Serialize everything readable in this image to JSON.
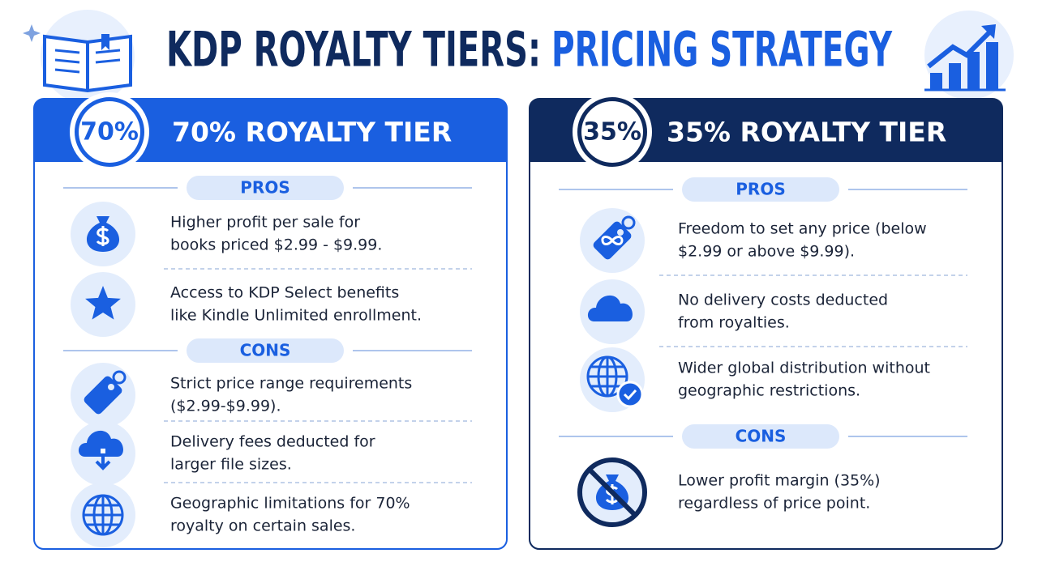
{
  "header": {
    "title_part1": "KDP ROYALTY TIERS:",
    "title_part2": "PRICING STRATEGY"
  },
  "panels": [
    {
      "badge": "70%",
      "title": "70% ROYALTY TIER",
      "pros_label": "PROS",
      "cons_label": "CONS",
      "pros": [
        [
          "Higher profit per sale for",
          "books priced $2.99 - $9.99."
        ],
        [
          "Access to KDP Select benefits",
          "like Kindle Unlimited enrollment."
        ]
      ],
      "cons": [
        [
          "Strict price range requirements",
          "($2.99-$9.99)."
        ],
        [
          "Delivery fees deducted for",
          "larger file sizes."
        ],
        [
          "Geographic limitations for 70%",
          "royalty on certain sales."
        ]
      ]
    },
    {
      "badge": "35%",
      "title": "35% ROYALTY TIER",
      "pros_label": "PROS",
      "cons_label": "CONS",
      "pros": [
        [
          "Freedom to set any price (below",
          "$2.99 or above $9.99)."
        ],
        [
          "No delivery costs deducted",
          "from royalties."
        ],
        [
          "Wider global distribution without",
          "geographic restrictions."
        ]
      ],
      "cons": [
        [
          "Lower profit margin (35%)",
          "regardless of price point."
        ]
      ]
    }
  ]
}
